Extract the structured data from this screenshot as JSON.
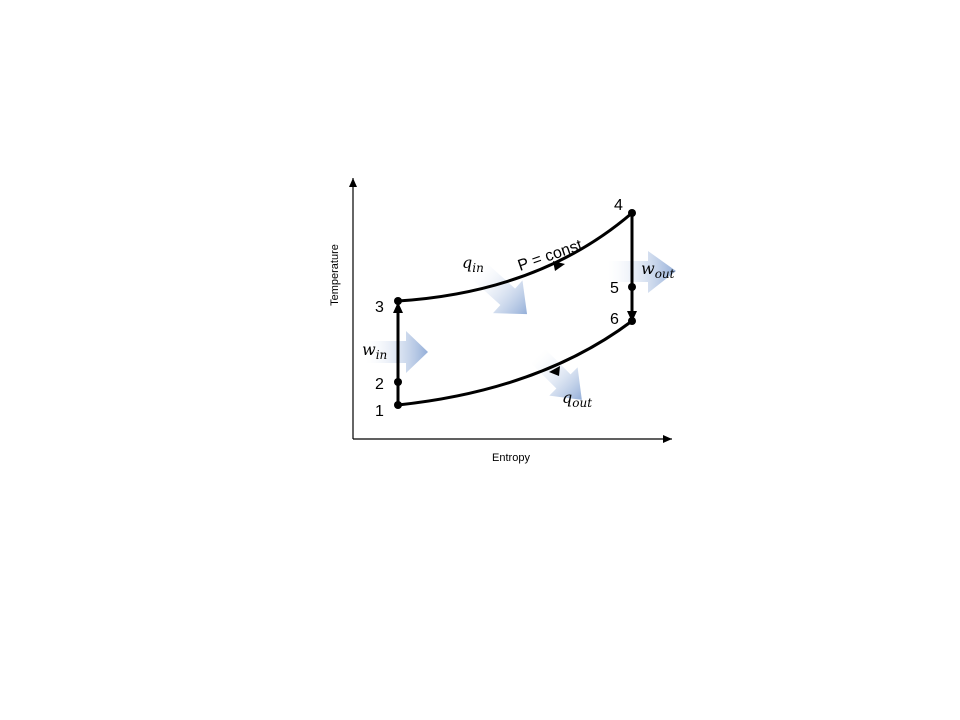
{
  "axes": {
    "x_label": "Entropy",
    "y_label": "Temperature"
  },
  "points": {
    "p1": "1",
    "p2": "2",
    "p3": "3",
    "p4": "4",
    "p5": "5",
    "p6": "6"
  },
  "process_label": "P = const",
  "energy_labels": {
    "q_in": {
      "main": "q",
      "sub": "in"
    },
    "q_out": {
      "main": "q",
      "sub": "out"
    },
    "w_in": {
      "main": "w",
      "sub": "in"
    },
    "w_out": {
      "main": "w",
      "sub": "out"
    }
  },
  "colors": {
    "line": "#000000",
    "energy_arrow": "#9bb3d8"
  }
}
